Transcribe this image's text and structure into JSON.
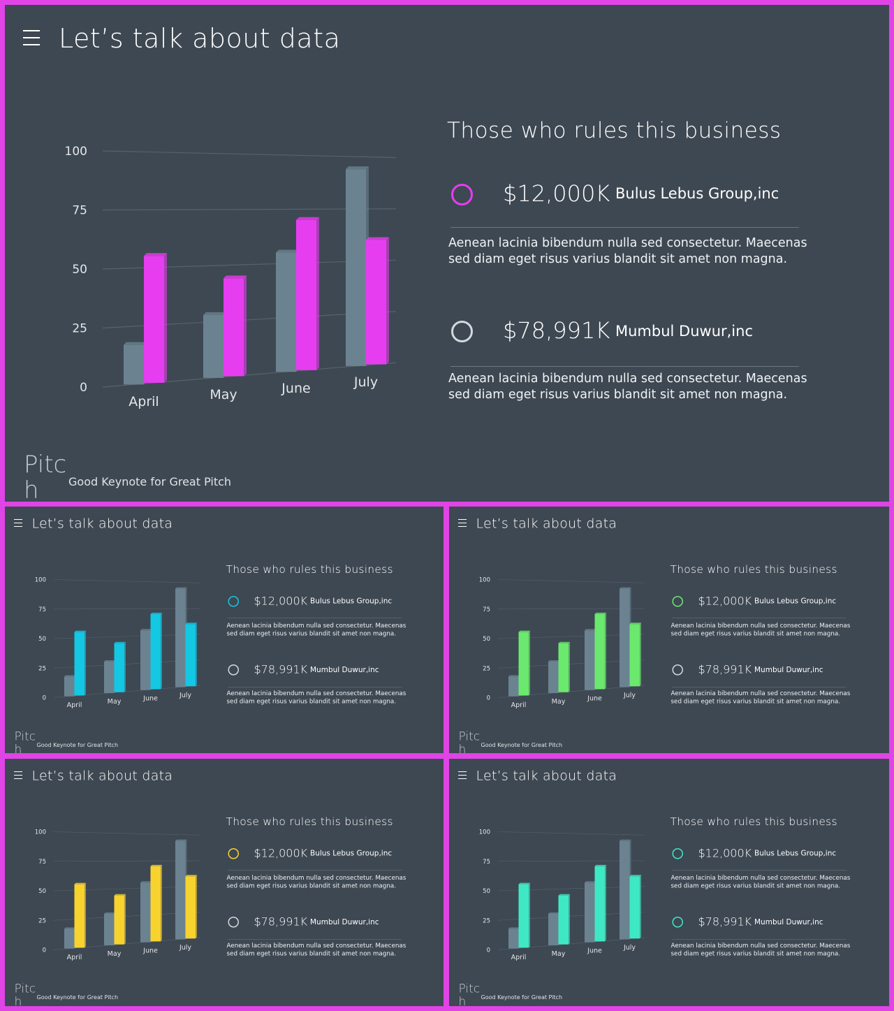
{
  "slide": {
    "title": "Let’s talk about data",
    "right_heading": "Those who rules this business",
    "entries": [
      {
        "amount": "$12,000K",
        "company": "Bulus Lebus Group,inc",
        "description": "Aenean lacinia bibendum nulla sed consectetur. Maecenas sed diam eget risus varius blandit sit amet non magna."
      },
      {
        "amount": "$78,991K",
        "company": "Mumbul Duwur,inc",
        "description": "Aenean lacinia bibendum nulla sed consectetur. Maecenas sed diam eget risus varius blandit sit amet non magna."
      }
    ],
    "brand": "Pitch",
    "tagline": "Good Keynote for Great Pitch"
  },
  "variants": [
    {
      "id": "main",
      "accent": "#e73df0",
      "second_ring": "#d4d9dd"
    },
    {
      "id": "cyan",
      "accent": "#14c7e3",
      "second_ring": "#d4d9dd"
    },
    {
      "id": "green",
      "accent": "#6be86e",
      "second_ring": "#d4d9dd"
    },
    {
      "id": "yellow",
      "accent": "#f8d22e",
      "second_ring": "#d4d9dd"
    },
    {
      "id": "teal",
      "accent": "#3fe8c4",
      "second_ring": "#3fe8c4"
    }
  ],
  "base_series_color": "#6b8391",
  "chart_data": {
    "type": "bar",
    "categories": [
      "April",
      "May",
      "June",
      "July"
    ],
    "series": [
      {
        "values": [
          17,
          28,
          55,
          94
        ]
      },
      {
        "values": [
          55,
          44,
          70,
          60
        ]
      }
    ],
    "yticks": [
      0,
      25,
      50,
      75,
      100
    ],
    "ylim": [
      0,
      100
    ],
    "grid": true
  }
}
